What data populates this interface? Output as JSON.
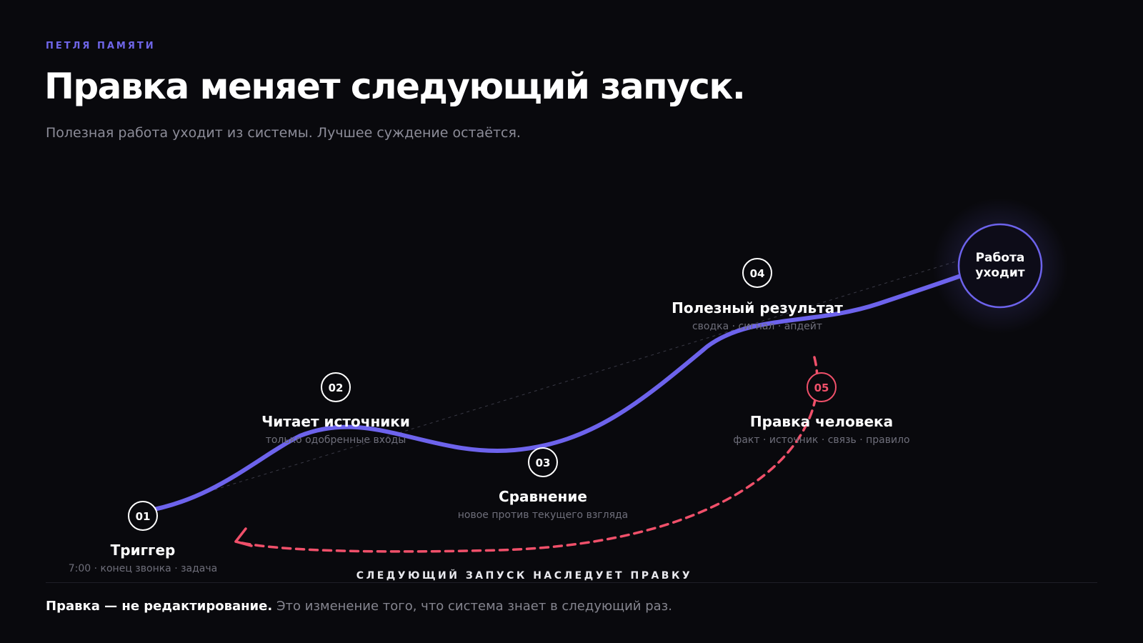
{
  "header": {
    "eyebrow": "ПЕТЛЯ ПАМЯТИ",
    "title": "Правка меняет следующий запуск.",
    "subtitle": "Полезная работа уходит из системы. Лучшее суждение остаётся."
  },
  "steps": [
    {
      "num": "01",
      "title": "Триггер",
      "sub": "7:00 · конец звонка · задача"
    },
    {
      "num": "02",
      "title": "Читает источники",
      "sub": "только одобренные входы"
    },
    {
      "num": "03",
      "title": "Сравнение",
      "sub": "новое против текущего взгляда"
    },
    {
      "num": "04",
      "title": "Полезный результат",
      "sub": "сводка · сигнал · апдейт"
    },
    {
      "num": "05",
      "title": "Правка человека",
      "sub": "факт · источник · связь · правило"
    }
  ],
  "final_node": {
    "label": "Работа уходит"
  },
  "loop_label": "СЛЕДУЮЩИЙ ЗАПУСК НАСЛЕДУЕТ ПРАВКУ",
  "footer": {
    "bold": "Правка — не редактирование.",
    "rest": "Это изменение того, что система знает в следующий раз."
  },
  "colors": {
    "background": "#09090d",
    "path": "#6d63ec",
    "loop": "#f0506a",
    "eyebrow": "#6f66e9",
    "muted": "#8c8c98"
  }
}
